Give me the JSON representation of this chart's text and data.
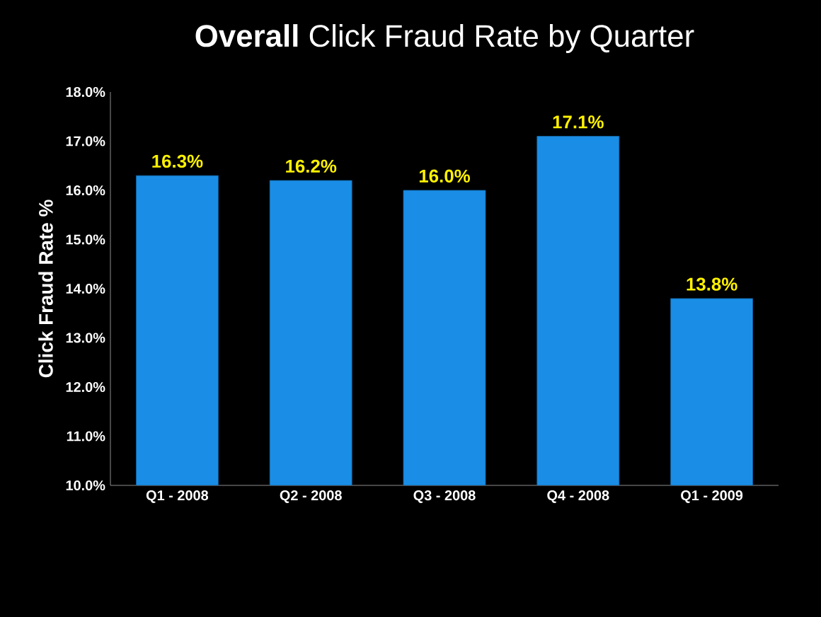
{
  "chart_data": {
    "type": "bar",
    "title": "**Overall** Click Fraud Rate by Quarter",
    "ylabel": "Click Fraud Rate %",
    "categories": [
      "Q1 - 2008",
      "Q2 - 2008",
      "Q3 - 2008",
      "Q4 - 2008",
      "Q1 - 2009"
    ],
    "values": [
      16.3,
      16.2,
      16.0,
      17.1,
      13.8
    ],
    "value_labels": [
      "16.3%",
      "16.2%",
      "16.0%",
      "17.1%",
      "13.8%"
    ],
    "color": "#1a8ee6",
    "ylim": [
      10,
      18
    ],
    "yticks": [
      {
        "value": 10,
        "label": "10.0%"
      },
      {
        "value": 11,
        "label": "11.0%"
      },
      {
        "value": 12,
        "label": "12.0%"
      },
      {
        "value": 13,
        "label": "13.0%"
      },
      {
        "value": 14,
        "label": "14.0%"
      },
      {
        "value": 15,
        "label": "15.0%"
      },
      {
        "value": 16,
        "label": "16.0%"
      },
      {
        "value": 17,
        "label": "17.0%"
      },
      {
        "value": 18,
        "label": "18.0%"
      }
    ],
    "grid": false
  }
}
